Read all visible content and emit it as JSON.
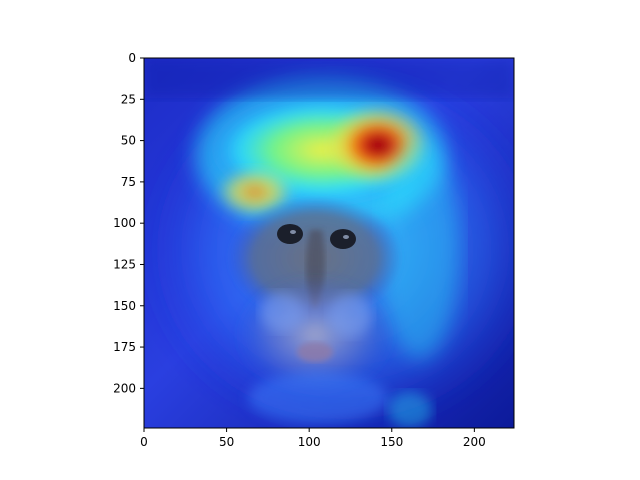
{
  "figure": {
    "background": "#ffffff",
    "kind": "image heatmap overlay (Grad-CAM style) on a monkey face",
    "colormap": "jet",
    "overlay_colors": {
      "base": "#1a2ad8",
      "cool": "#2f7bff",
      "mid": "#2cf2ff",
      "warm": "#ffe83a",
      "hot": "#ff6a00",
      "peak": "#b0060a"
    },
    "face_colors": {
      "fur": "#5aa0c8",
      "face": "#5f6270",
      "muzzle": "#8aa0c4",
      "eye": "#1b1f2b"
    }
  },
  "axes": {
    "x_range": [
      0,
      224
    ],
    "y_range": [
      0,
      224
    ],
    "y_inverted": true,
    "x_ticks": [
      "0",
      "50",
      "100",
      "150",
      "200"
    ],
    "y_ticks": [
      "0",
      "25",
      "50",
      "75",
      "100",
      "125",
      "150",
      "175",
      "200"
    ]
  },
  "image": {
    "subject": "monkey face",
    "hotspots": [
      {
        "name": "primary-hotspot",
        "center": [
          135,
          52
        ],
        "intensity": "peak"
      },
      {
        "name": "forehead-band",
        "center": [
          110,
          60
        ],
        "intensity": "warm"
      },
      {
        "name": "left-brow",
        "center": [
          70,
          80
        ],
        "intensity": "warm"
      }
    ]
  }
}
